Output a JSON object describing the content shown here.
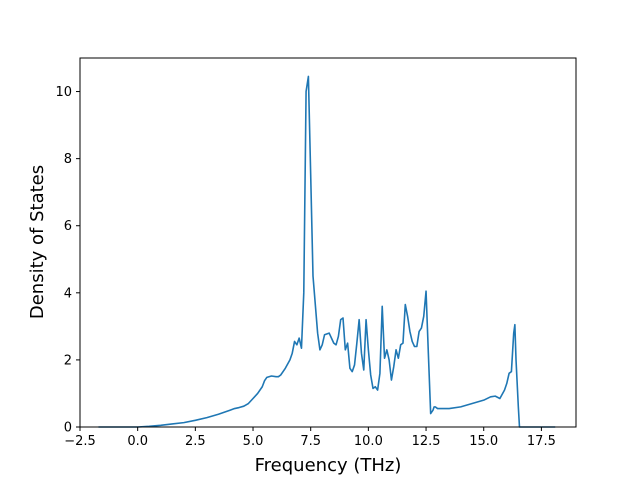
{
  "chart_data": {
    "type": "line",
    "title": "",
    "xlabel": "Frequency (THz)",
    "ylabel": "Density of States",
    "xlim": [
      -2.5,
      19.0
    ],
    "ylim": [
      0,
      11
    ],
    "xticks": [
      -2.5,
      0.0,
      2.5,
      5.0,
      7.5,
      10.0,
      12.5,
      15.0,
      17.5
    ],
    "xtick_labels": [
      "−2.5",
      "0.0",
      "2.5",
      "5.0",
      "7.5",
      "10.0",
      "12.5",
      "15.0",
      "17.5"
    ],
    "yticks": [
      0,
      2,
      4,
      6,
      8,
      10
    ],
    "ytick_labels": [
      "0",
      "2",
      "4",
      "6",
      "8",
      "10"
    ],
    "grid": false,
    "legend": "none",
    "series": [
      {
        "color": "#1f77b4",
        "x": [
          -1.7,
          -1.0,
          -0.5,
          0.0,
          0.5,
          1.0,
          1.5,
          2.0,
          2.5,
          3.0,
          3.5,
          4.0,
          4.2,
          4.4,
          4.6,
          4.8,
          5.0,
          5.2,
          5.4,
          5.5,
          5.6,
          5.8,
          6.0,
          6.1,
          6.2,
          6.4,
          6.6,
          6.7,
          6.8,
          6.9,
          7.0,
          7.1,
          7.2,
          7.3,
          7.4,
          7.5,
          7.6,
          7.8,
          7.9,
          8.0,
          8.1,
          8.3,
          8.5,
          8.6,
          8.7,
          8.8,
          8.9,
          9.0,
          9.1,
          9.2,
          9.3,
          9.4,
          9.5,
          9.6,
          9.7,
          9.8,
          9.9,
          10.0,
          10.1,
          10.2,
          10.3,
          10.4,
          10.5,
          10.6,
          10.7,
          10.8,
          10.9,
          11.0,
          11.1,
          11.2,
          11.3,
          11.4,
          11.5,
          11.6,
          11.7,
          11.8,
          11.9,
          12.0,
          12.1,
          12.2,
          12.3,
          12.4,
          12.5,
          12.6,
          12.7,
          12.8,
          12.85,
          12.9,
          13.0,
          13.2,
          13.5,
          14.0,
          14.5,
          15.0,
          15.3,
          15.5,
          15.7,
          15.9,
          16.0,
          16.1,
          16.2,
          16.3,
          16.35,
          16.4,
          16.5,
          16.55,
          16.6,
          17.0,
          17.5,
          18.1
        ],
        "y": [
          0,
          0,
          0,
          0,
          0.02,
          0.05,
          0.09,
          0.13,
          0.2,
          0.28,
          0.38,
          0.5,
          0.55,
          0.58,
          0.62,
          0.7,
          0.85,
          1.0,
          1.2,
          1.38,
          1.48,
          1.52,
          1.5,
          1.5,
          1.55,
          1.75,
          2.0,
          2.2,
          2.55,
          2.45,
          2.65,
          2.35,
          4.0,
          10.0,
          10.45,
          7.5,
          4.5,
          2.8,
          2.3,
          2.45,
          2.75,
          2.8,
          2.5,
          2.45,
          2.7,
          3.2,
          3.25,
          2.3,
          2.5,
          1.75,
          1.65,
          1.85,
          2.5,
          3.2,
          2.2,
          1.7,
          3.2,
          2.3,
          1.55,
          1.15,
          1.2,
          1.1,
          1.6,
          3.6,
          2.05,
          2.3,
          2.0,
          1.4,
          1.8,
          2.3,
          2.05,
          2.45,
          2.5,
          3.65,
          3.3,
          2.85,
          2.55,
          2.4,
          2.4,
          2.85,
          2.95,
          3.3,
          4.05,
          2.2,
          0.4,
          0.5,
          0.6,
          0.6,
          0.55,
          0.55,
          0.55,
          0.6,
          0.7,
          0.8,
          0.9,
          0.92,
          0.85,
          1.1,
          1.3,
          1.6,
          1.65,
          2.8,
          3.05,
          2.0,
          0.6,
          0.0,
          0.0,
          0.0,
          0.0,
          0.0
        ]
      }
    ]
  }
}
